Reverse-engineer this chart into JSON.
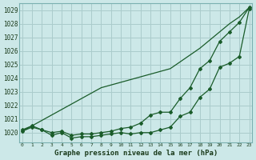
{
  "title": "Graphe pression niveau de la mer (hPa)",
  "bg_color": "#cce8e8",
  "grid_color": "#aacccc",
  "line_color": "#1a5c2a",
  "x_ticks": [
    0,
    1,
    2,
    3,
    4,
    5,
    6,
    7,
    8,
    9,
    10,
    11,
    12,
    13,
    14,
    15,
    16,
    17,
    18,
    19,
    20,
    21,
    22,
    23
  ],
  "y_ticks": [
    1020,
    1021,
    1022,
    1023,
    1024,
    1025,
    1026,
    1027,
    1028,
    1029
  ],
  "ylim": [
    1019.3,
    1029.5
  ],
  "xlim": [
    -0.3,
    23.3
  ],
  "line1_straight": [
    1020.1,
    1020.5,
    1020.9,
    1021.3,
    1021.7,
    1022.1,
    1022.5,
    1022.9,
    1023.3,
    1023.5,
    1023.7,
    1023.9,
    1024.1,
    1024.3,
    1024.5,
    1024.7,
    1025.2,
    1025.7,
    1026.2,
    1026.8,
    1027.4,
    1028.0,
    1028.5,
    1029.2
  ],
  "line2_mid": [
    1020.1,
    1020.4,
    1020.2,
    1020.0,
    1020.1,
    1019.8,
    1019.9,
    1019.9,
    1020.0,
    1020.1,
    1020.3,
    1020.4,
    1020.7,
    1021.3,
    1021.5,
    1021.5,
    1022.5,
    1023.3,
    1024.7,
    1025.3,
    1026.7,
    1027.4,
    1028.1,
    1029.2
  ],
  "line3_low": [
    1020.2,
    1020.5,
    1020.2,
    1019.8,
    1020.0,
    1019.6,
    1019.7,
    1019.7,
    1019.8,
    1019.9,
    1020.0,
    1019.9,
    1020.0,
    1020.0,
    1020.2,
    1020.4,
    1021.2,
    1021.5,
    1022.6,
    1023.2,
    1024.8,
    1025.1,
    1025.6,
    1029.1
  ]
}
